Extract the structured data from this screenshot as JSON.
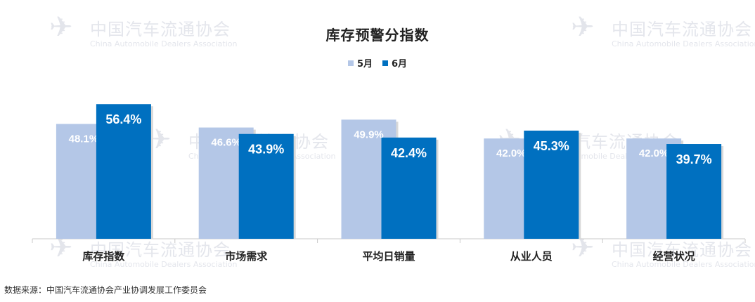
{
  "watermark": {
    "cn": "中国汽车流通协会",
    "en": "China Automobile Dealers Association",
    "logo": "CADA"
  },
  "source": "数据来源：中国汽车流通协会产业协调发展工作委员会",
  "colors": {
    "may": "#b4c7e7",
    "june": "#0070c0"
  },
  "chart_data": {
    "type": "bar",
    "title": "库存预警分指数",
    "categories": [
      "库存指数",
      "市场需求",
      "平均日销量",
      "从业人员",
      "经营状况"
    ],
    "series": [
      {
        "name": "5月",
        "values": [
          48.1,
          46.6,
          49.9,
          42.0,
          42.0
        ],
        "labels": [
          "48.1%",
          "46.6%",
          "49.9%",
          "42.0%",
          "42.0%"
        ]
      },
      {
        "name": "6月",
        "values": [
          56.4,
          43.9,
          42.4,
          45.3,
          39.7
        ],
        "labels": [
          "56.4%",
          "43.9%",
          "42.4%",
          "45.3%",
          "39.7%"
        ]
      }
    ],
    "unit": "%",
    "legend": "top-center",
    "grid": false
  }
}
